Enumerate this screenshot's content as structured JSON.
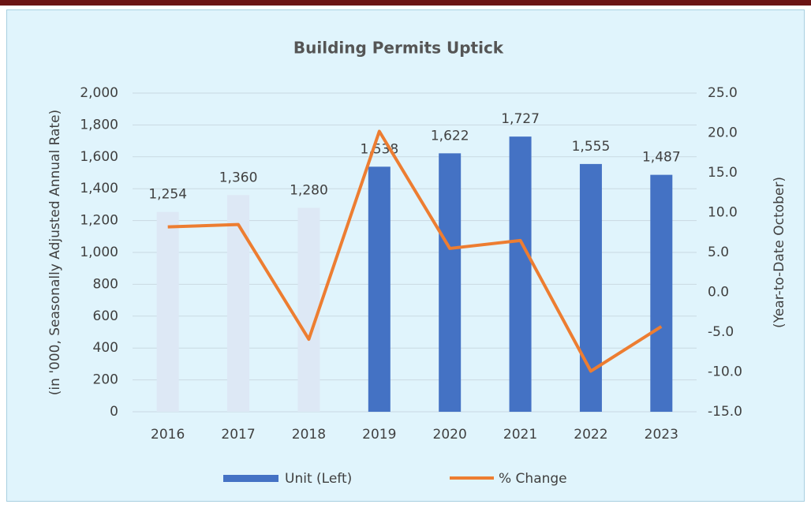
{
  "chart_data": {
    "type": "bar",
    "title": "Building Permits Uptick",
    "y_label": "(in '000, Seasonally Adjusted Annual Rate)",
    "y2_label": "(Year-to-Date October)",
    "categories": [
      "2016",
      "2017",
      "2018",
      "2019",
      "2020",
      "2021",
      "2022",
      "2023"
    ],
    "series": [
      {
        "name": "Unit (Left)",
        "type": "bar",
        "color": "#4472c4",
        "colors": [
          "#dde8f5",
          "#dde8f5",
          "#dde8f5",
          "#4472c4",
          "#4472c4",
          "#4472c4",
          "#4472c4",
          "#4472c4"
        ],
        "values": [
          1254,
          1360,
          1280,
          1538,
          1622,
          1727,
          1555,
          1487
        ],
        "value_labels": [
          "1,254",
          "1,360",
          "1,280",
          "1,538",
          "1,622",
          "1,727",
          "1,555",
          "1,487"
        ]
      },
      {
        "name": "%  Change",
        "type": "line",
        "axis": "y2",
        "color": "#ed7d31",
        "values": [
          8.2,
          8.5,
          -5.9,
          20.2,
          5.5,
          6.5,
          -9.9,
          -4.3
        ]
      }
    ],
    "ylim": [
      0,
      2000
    ],
    "yticks": [
      0,
      200,
      400,
      600,
      800,
      {
        "value": 1000,
        "label": "1,000"
      },
      {
        "value": 1200,
        "label": "1,200"
      },
      {
        "value": 1400,
        "label": "1,400"
      },
      {
        "value": 1600,
        "label": "1,600"
      },
      {
        "value": 1800,
        "label": "1,800"
      },
      {
        "value": 2000,
        "label": "2,000"
      }
    ],
    "y2lim": [
      -15,
      25
    ],
    "y2ticks": [
      {
        "value": -15,
        "label": "-15.0"
      },
      {
        "value": -10,
        "label": "-10.0"
      },
      {
        "value": -5,
        "label": "-5.0"
      },
      {
        "value": 0,
        "label": "0.0"
      },
      {
        "value": 5,
        "label": "5.0"
      },
      {
        "value": 10,
        "label": "10.0"
      },
      {
        "value": 15,
        "label": "15.0"
      },
      {
        "value": 20,
        "label": "20.0"
      },
      {
        "value": 25,
        "label": "25.0"
      }
    ],
    "grid": true,
    "legend": "bottom"
  }
}
